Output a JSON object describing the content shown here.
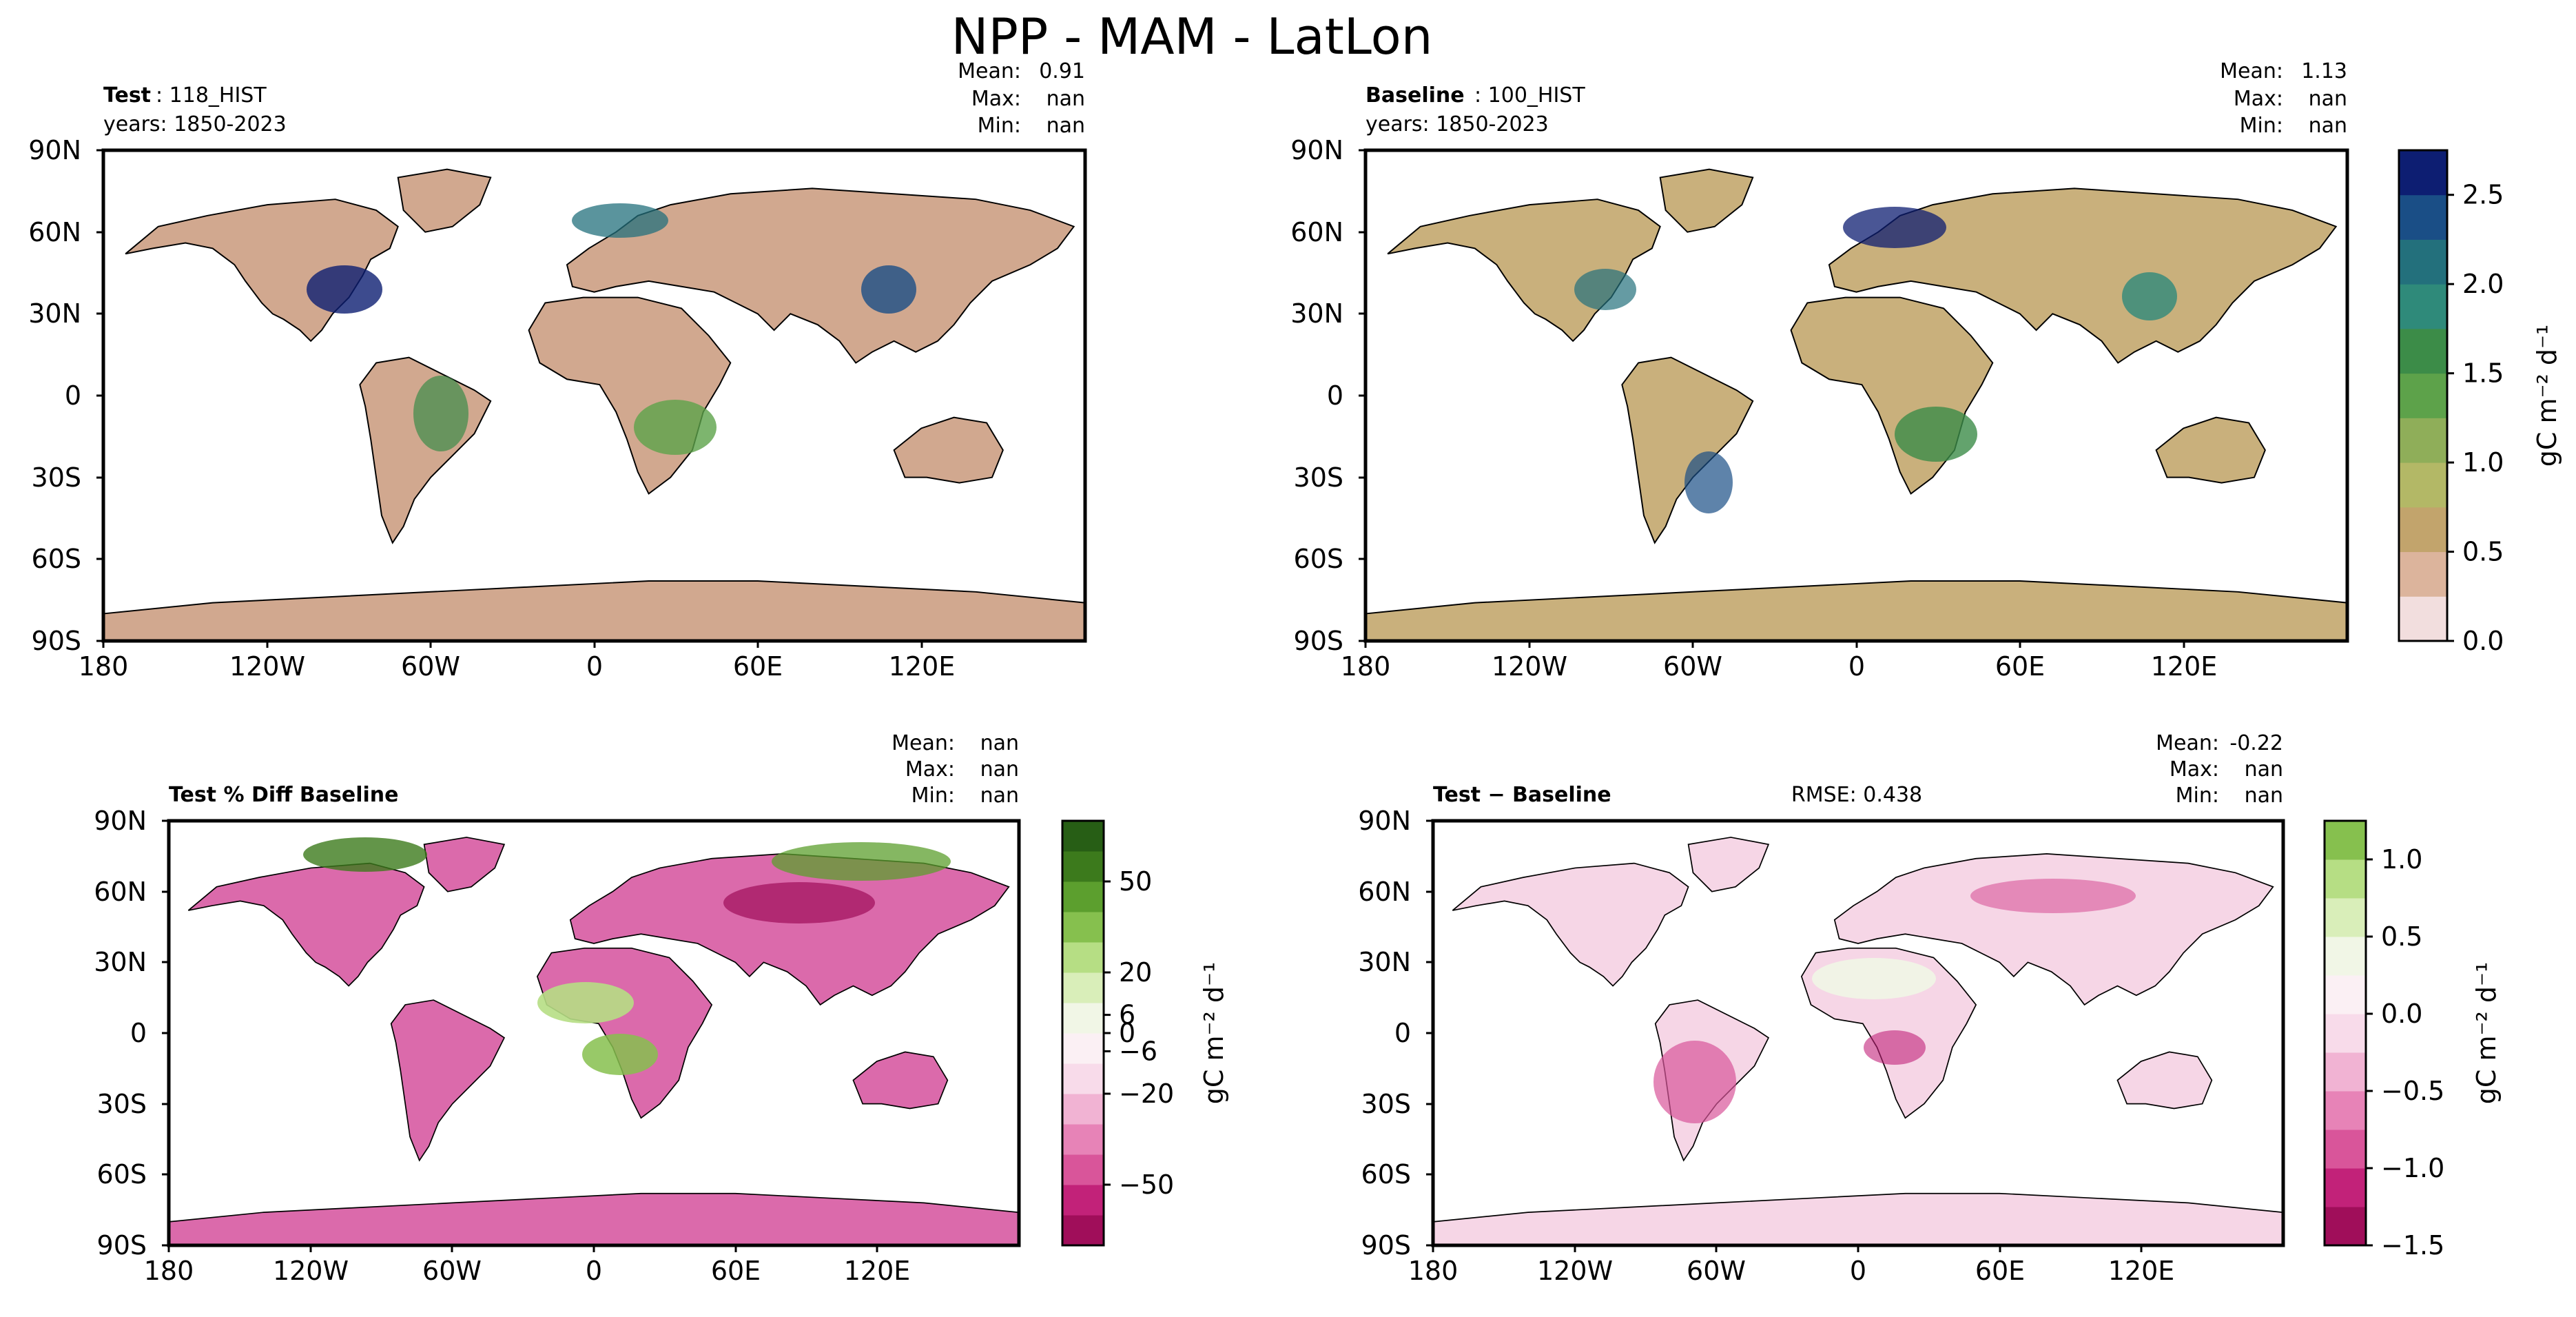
{
  "figure": {
    "title": "NPP - MAM - LatLon"
  },
  "colors": {
    "seq": [
      "#f2dede",
      "#dcb49c",
      "#c2a46c",
      "#b3b866",
      "#8fae59",
      "#5da24a",
      "#3c8c48",
      "#2f8a7a",
      "#23707c",
      "#1a4e86",
      "#0d1e72"
    ],
    "diff": [
      "#a00e5a",
      "#c22279",
      "#d9559a",
      "#e783b7",
      "#f1b3d3",
      "#f8dbea",
      "#fbf0f4",
      "#f1f6e6",
      "#d9eeb9",
      "#b6de84",
      "#86c04e",
      "#5c9f2e",
      "#3c7a1c",
      "#275e15"
    ],
    "land_test": "#d1a88f",
    "land_base": "#c9b07c",
    "land_pct": "#db6aab",
    "land_diff": "#f6d6e6"
  },
  "panels": [
    {
      "id": "test",
      "title_bold": "Test",
      "title_rest": ": 118_HIST",
      "years": "years: 1850-2023",
      "stats": {
        "labels": [
          "Mean:",
          "Max:",
          "Min:"
        ],
        "values": [
          "0.91",
          "nan",
          "nan"
        ]
      }
    },
    {
      "id": "baseline",
      "title_bold": "Baseline",
      "title_rest": ": 100_HIST",
      "years": "years: 1850-2023",
      "stats": {
        "labels": [
          "Mean:",
          "Max:",
          "Min:"
        ],
        "values": [
          "1.13",
          "nan",
          "nan"
        ]
      }
    },
    {
      "id": "pctdiff",
      "title_bold": "Test % Diff Baseline",
      "stats": {
        "labels": [
          "Mean:",
          "Max:",
          "Min:"
        ],
        "values": [
          "nan",
          "nan",
          "nan"
        ]
      }
    },
    {
      "id": "diff",
      "title_bold": "Test − Baseline",
      "rmse": "RMSE: 0.438",
      "stats": {
        "labels": [
          "Mean:",
          "Max:",
          "Min:"
        ],
        "values": [
          "-0.22",
          "nan",
          "nan"
        ]
      }
    }
  ],
  "axes": {
    "lat_ticks": [
      "90N",
      "60N",
      "30N",
      "0",
      "30S",
      "60S",
      "90S"
    ],
    "lon_ticks": [
      "180",
      "120W",
      "60W",
      "0",
      "60E",
      "120E"
    ]
  },
  "colorbars": [
    {
      "id": "cb-seq",
      "label": "gC m⁻² d⁻¹",
      "min": 0,
      "max": 2.75,
      "ticks": [
        "0.0",
        "0.5",
        "1.0",
        "1.5",
        "2.0",
        "2.5"
      ],
      "tick_values": [
        0,
        0.5,
        1.0,
        1.5,
        2.0,
        2.5
      ]
    },
    {
      "id": "cb-pct",
      "label": "gC m⁻² d⁻¹",
      "min": -70,
      "max": 70,
      "ticks": [
        "−50",
        "−20",
        "−6",
        "0",
        "6",
        "20",
        "50"
      ],
      "tick_values": [
        -50,
        -20,
        -6,
        0,
        6,
        20,
        50
      ]
    },
    {
      "id": "cb-diff",
      "label": "gC m⁻² d⁻¹",
      "min": -1.5,
      "max": 1.25,
      "ticks": [
        "−1.5",
        "−1.0",
        "−0.5",
        "0.0",
        "0.5",
        "1.0"
      ],
      "tick_values": [
        -1.5,
        -1.0,
        -0.5,
        0.0,
        0.5,
        1.0
      ]
    }
  ],
  "chart_data": [
    {
      "type": "heatmap",
      "title": "Test: 118_HIST",
      "variable": "NPP",
      "season": "MAM",
      "units": "gC m⁻² d⁻¹",
      "xlim": [
        -180,
        180
      ],
      "ylim": [
        -90,
        90
      ],
      "clim": [
        0,
        2.75
      ],
      "mean": 0.91,
      "max": "nan",
      "min": "nan"
    },
    {
      "type": "heatmap",
      "title": "Baseline: 100_HIST",
      "variable": "NPP",
      "season": "MAM",
      "units": "gC m⁻² d⁻¹",
      "xlim": [
        -180,
        180
      ],
      "ylim": [
        -90,
        90
      ],
      "clim": [
        0,
        2.75
      ],
      "mean": 1.13,
      "max": "nan",
      "min": "nan"
    },
    {
      "type": "heatmap",
      "title": "Test % Diff Baseline",
      "units": "gC m⁻² d⁻¹",
      "xlim": [
        -180,
        180
      ],
      "ylim": [
        -90,
        90
      ],
      "clim": [
        -70,
        70
      ],
      "mean": "nan",
      "max": "nan",
      "min": "nan"
    },
    {
      "type": "heatmap",
      "title": "Test − Baseline",
      "units": "gC m⁻² d⁻¹",
      "xlim": [
        -180,
        180
      ],
      "ylim": [
        -90,
        90
      ],
      "clim": [
        -1.5,
        1.25
      ],
      "mean": -0.22,
      "max": "nan",
      "min": "nan",
      "rmse": 0.438
    }
  ]
}
